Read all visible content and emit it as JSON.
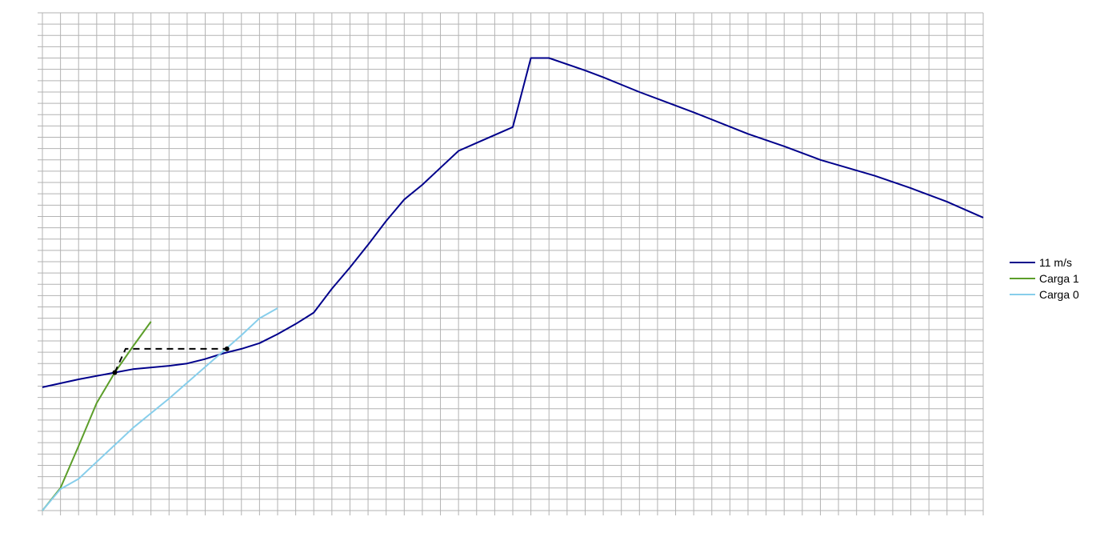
{
  "chart_data": {
    "type": "line",
    "title": "",
    "xlabel": "",
    "ylabel": "",
    "xlim": [
      0,
      52
    ],
    "ylim": [
      0,
      44
    ],
    "grid": true,
    "legend_position": "right",
    "series": [
      {
        "name": "11 m/s",
        "color": "#00008B",
        "points": [
          [
            0,
            10.9
          ],
          [
            2,
            11.6
          ],
          [
            4,
            12.2
          ],
          [
            5,
            12.5
          ],
          [
            7,
            12.8
          ],
          [
            8,
            13
          ],
          [
            9,
            13.4
          ],
          [
            10,
            13.9
          ],
          [
            11,
            14.3
          ],
          [
            12,
            14.8
          ],
          [
            13,
            15.6
          ],
          [
            14,
            16.5
          ],
          [
            15,
            17.5
          ],
          [
            16,
            19.6
          ],
          [
            17,
            21.5
          ],
          [
            18,
            23.5
          ],
          [
            19,
            25.6
          ],
          [
            20,
            27.5
          ],
          [
            21,
            28.8
          ],
          [
            22,
            30.3
          ],
          [
            23,
            31.8
          ],
          [
            24,
            32.5
          ],
          [
            25,
            33.2
          ],
          [
            26,
            33.9
          ],
          [
            27,
            40.0
          ],
          [
            28,
            40.0
          ],
          [
            30,
            38.9
          ],
          [
            31,
            38.3
          ],
          [
            33,
            37.0
          ],
          [
            36,
            35.2
          ],
          [
            39,
            33.3
          ],
          [
            41,
            32.2
          ],
          [
            43,
            31.0
          ],
          [
            46,
            29.6
          ],
          [
            48,
            28.5
          ],
          [
            50,
            27.3
          ],
          [
            52,
            25.9
          ]
        ]
      },
      {
        "name": "Carga 1",
        "color": "#5C9E2A",
        "points": [
          [
            0,
            0
          ],
          [
            1,
            2
          ],
          [
            2,
            5.7
          ],
          [
            3,
            9.5
          ],
          [
            4,
            12.2
          ],
          [
            5,
            14.5
          ],
          [
            6,
            16.7
          ]
        ]
      },
      {
        "name": "Carga 0",
        "color": "#87CEEB",
        "points": [
          [
            0,
            0
          ],
          [
            1,
            1.9
          ],
          [
            2,
            2.8
          ],
          [
            3,
            4.3
          ],
          [
            4,
            5.8
          ],
          [
            5,
            7.3
          ],
          [
            6,
            8.6
          ],
          [
            7,
            9.9
          ],
          [
            8,
            11.3
          ],
          [
            9,
            12.7
          ],
          [
            10,
            14.1
          ],
          [
            11,
            15.5
          ],
          [
            12,
            17.0
          ],
          [
            13,
            17.9
          ]
        ]
      }
    ],
    "annotations": [
      {
        "type": "dashed-connector",
        "color": "#000000",
        "points": [
          [
            4,
            12.2
          ],
          [
            4.6,
            14.3
          ],
          [
            10.2,
            14.3
          ]
        ]
      },
      {
        "type": "markers",
        "color": "#000000",
        "points": [
          [
            4,
            12.2
          ],
          [
            10.2,
            14.3
          ]
        ]
      }
    ]
  },
  "legend": {
    "items": [
      {
        "label": "11 m/s",
        "color": "#00008B"
      },
      {
        "label": "Carga 1",
        "color": "#5C9E2A"
      },
      {
        "label": "Carga 0",
        "color": "#87CEEB"
      }
    ]
  }
}
